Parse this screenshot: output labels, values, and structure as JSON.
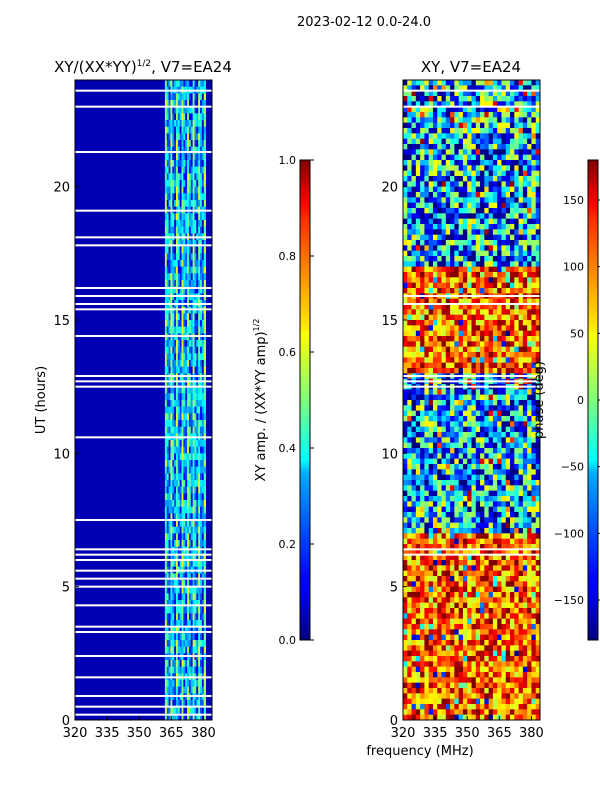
{
  "figure": {
    "suptitle": "2023-02-12 0.0-24.0",
    "shared_xlabel": "frequency (MHz)"
  },
  "chart_data": [
    {
      "type": "heatmap",
      "title": "XY/(XX*YY)",
      "title_exponent": "1/2",
      "title_suffix": ", V7=EA24",
      "xlabel": "",
      "ylabel": "UT (hours)",
      "xlim": [
        320,
        384
      ],
      "ylim": [
        0,
        24
      ],
      "xticks": [
        320,
        335,
        350,
        365,
        380
      ],
      "yticks": [
        0,
        5,
        10,
        15,
        20
      ],
      "colorbar": {
        "label": "XY amp. / (XX*YY amp)",
        "label_exponent": "1/2",
        "range": [
          0.0,
          1.0
        ],
        "ticks": [
          "0.0",
          "0.2",
          "0.4",
          "0.6",
          "0.8",
          "1.0"
        ],
        "colormap": "jet"
      },
      "description_values": {
        "low_freq_band_mhz": [
          320,
          362
        ],
        "low_freq_level": 0.05,
        "high_freq_band_mhz": [
          362,
          381
        ],
        "high_freq_level_range": [
          0.2,
          0.5
        ],
        "flagged_hours": [
          0.2,
          0.5,
          0.9,
          1.6,
          2.4,
          3.3,
          3.5,
          4.3,
          5.0,
          5.3,
          5.6,
          6.0,
          6.2,
          6.4,
          7.5,
          10.6,
          12.5,
          12.7,
          12.9,
          14.4,
          15.4,
          15.6,
          15.9,
          16.2,
          17.8,
          18.1,
          19.1,
          21.3,
          23.0,
          23.6
        ]
      }
    },
    {
      "type": "heatmap",
      "title": "XY, V7=EA24",
      "xlabel": "frequency (MHz)",
      "ylabel": "",
      "xlim": [
        320,
        384
      ],
      "ylim": [
        0,
        24
      ],
      "xticks": [
        320,
        335,
        350,
        365,
        380
      ],
      "yticks": [
        0,
        5,
        10,
        15,
        20
      ],
      "colorbar": {
        "label": "phase (deg)",
        "range": [
          -180,
          180
        ],
        "ticks": [
          "−150",
          "−100",
          "−50",
          "0",
          "50",
          "100",
          "150"
        ],
        "colormap": "jet"
      },
      "description_values": {
        "phase_pattern": "mixed, predominantly red/orange (+100..+180) at 0-7 h and 13-17 h, blue/cyan elsewhere",
        "flagged_hours": [
          6.2,
          6.4,
          12.5,
          12.7,
          12.9,
          15.6,
          15.9,
          23.0,
          23.6
        ]
      }
    }
  ]
}
